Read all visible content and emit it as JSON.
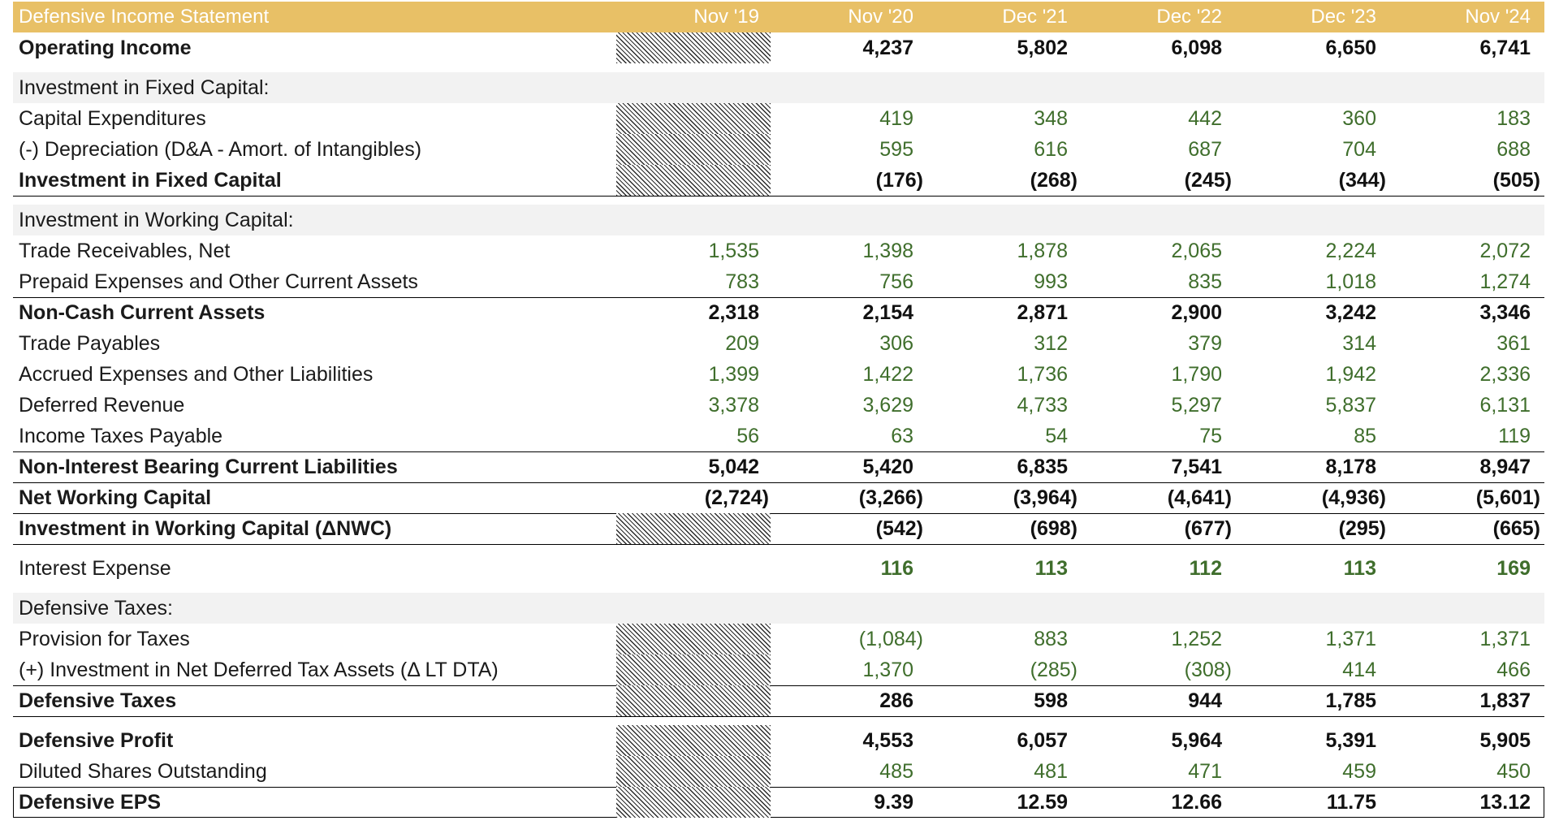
{
  "title": "Defensive Income Statement",
  "periods": [
    "Nov '19",
    "Nov '20",
    "Dec '21",
    "Dec '22",
    "Dec '23",
    "Nov '24"
  ],
  "rows": [
    {
      "label": "Operating Income",
      "style": "bold",
      "na": [
        true,
        false,
        false,
        false,
        false,
        false
      ],
      "values": [
        "",
        "4,237",
        "5,802",
        "6,098",
        "6,650",
        "6,741"
      ]
    },
    {
      "label": "Investment in Fixed Capital:",
      "style": "section",
      "values": [
        "",
        "",
        "",
        "",
        "",
        ""
      ]
    },
    {
      "label": "Capital Expenditures",
      "style": "normal",
      "na": [
        true,
        false,
        false,
        false,
        false,
        false
      ],
      "values": [
        "",
        "419",
        "348",
        "442",
        "360",
        "183"
      ]
    },
    {
      "label": "(-) Depreciation (D&A - Amort. of Intangibles)",
      "style": "normal",
      "na": [
        true,
        false,
        false,
        false,
        false,
        false
      ],
      "values": [
        "",
        "595",
        "616",
        "687",
        "704",
        "688"
      ]
    },
    {
      "label": "Investment in Fixed Capital",
      "style": "bold",
      "na": [
        true,
        false,
        false,
        false,
        false,
        false
      ],
      "values": [
        "",
        "(176)",
        "(268)",
        "(245)",
        "(344)",
        "(505)"
      ]
    },
    {
      "label": "Investment in Working Capital:",
      "style": "section",
      "values": [
        "",
        "",
        "",
        "",
        "",
        ""
      ]
    },
    {
      "label": "Trade Receivables, Net",
      "style": "normal",
      "values": [
        "1,535",
        "1,398",
        "1,878",
        "2,065",
        "2,224",
        "2,072"
      ]
    },
    {
      "label": "Prepaid Expenses and Other Current Assets",
      "style": "normal",
      "values": [
        "783",
        "756",
        "993",
        "835",
        "1,018",
        "1,274"
      ]
    },
    {
      "label": "Non-Cash Current Assets",
      "style": "bold",
      "values": [
        "2,318",
        "2,154",
        "2,871",
        "2,900",
        "3,242",
        "3,346"
      ]
    },
    {
      "label": "Trade Payables",
      "style": "normal",
      "values": [
        "209",
        "306",
        "312",
        "379",
        "314",
        "361"
      ]
    },
    {
      "label": "Accrued Expenses and Other Liabilities",
      "style": "normal",
      "values": [
        "1,399",
        "1,422",
        "1,736",
        "1,790",
        "1,942",
        "2,336"
      ]
    },
    {
      "label": "Deferred Revenue",
      "style": "normal",
      "values": [
        "3,378",
        "3,629",
        "4,733",
        "5,297",
        "5,837",
        "6,131"
      ]
    },
    {
      "label": "Income Taxes Payable",
      "style": "normal",
      "values": [
        "56",
        "63",
        "54",
        "75",
        "85",
        "119"
      ]
    },
    {
      "label": "Non-Interest Bearing Current Liabilities",
      "style": "bold",
      "values": [
        "5,042",
        "5,420",
        "6,835",
        "7,541",
        "8,178",
        "8,947"
      ]
    },
    {
      "label": "Net Working Capital",
      "style": "bold",
      "values": [
        "(2,724)",
        "(3,266)",
        "(3,964)",
        "(4,641)",
        "(4,936)",
        "(5,601)"
      ]
    },
    {
      "label": "Investment in Working Capital (ΔNWC)",
      "style": "bold",
      "na": [
        true,
        false,
        false,
        false,
        false,
        false
      ],
      "values": [
        "",
        "(542)",
        "(698)",
        "(677)",
        "(295)",
        "(665)"
      ]
    },
    {
      "label": "Interest Expense",
      "style": "greenbold",
      "values": [
        "",
        "116",
        "113",
        "112",
        "113",
        "169"
      ]
    },
    {
      "label": "Defensive Taxes:",
      "style": "section",
      "values": [
        "",
        "",
        "",
        "",
        "",
        ""
      ]
    },
    {
      "label": "Provision for Taxes",
      "style": "normal",
      "na": [
        true,
        false,
        false,
        false,
        false,
        false
      ],
      "values": [
        "",
        "(1,084)",
        "883",
        "1,252",
        "1,371",
        "1,371"
      ]
    },
    {
      "label": "(+) Investment in Net Deferred Tax Assets (Δ LT DTA)",
      "style": "normal",
      "na": [
        true,
        false,
        false,
        false,
        false,
        false
      ],
      "values": [
        "",
        "1,370",
        "(285)",
        "(308)",
        "414",
        "466"
      ]
    },
    {
      "label": "Defensive Taxes",
      "style": "bold",
      "na": [
        true,
        false,
        false,
        false,
        false,
        false
      ],
      "values": [
        "",
        "286",
        "598",
        "944",
        "1,785",
        "1,837"
      ]
    },
    {
      "label": "Defensive Profit",
      "style": "bold",
      "na": [
        true,
        false,
        false,
        false,
        false,
        false
      ],
      "values": [
        "",
        "4,553",
        "6,057",
        "5,964",
        "5,391",
        "5,905"
      ]
    },
    {
      "label": "Diluted Shares Outstanding",
      "style": "normal",
      "na": [
        true,
        false,
        false,
        false,
        false,
        false
      ],
      "values": [
        "",
        "485",
        "481",
        "471",
        "459",
        "450"
      ]
    },
    {
      "label": "Defensive EPS",
      "style": "bold",
      "na": [
        true,
        false,
        false,
        false,
        false,
        false
      ],
      "values": [
        "",
        "9.39",
        "12.59",
        "12.66",
        "11.75",
        "13.12"
      ]
    }
  ]
}
